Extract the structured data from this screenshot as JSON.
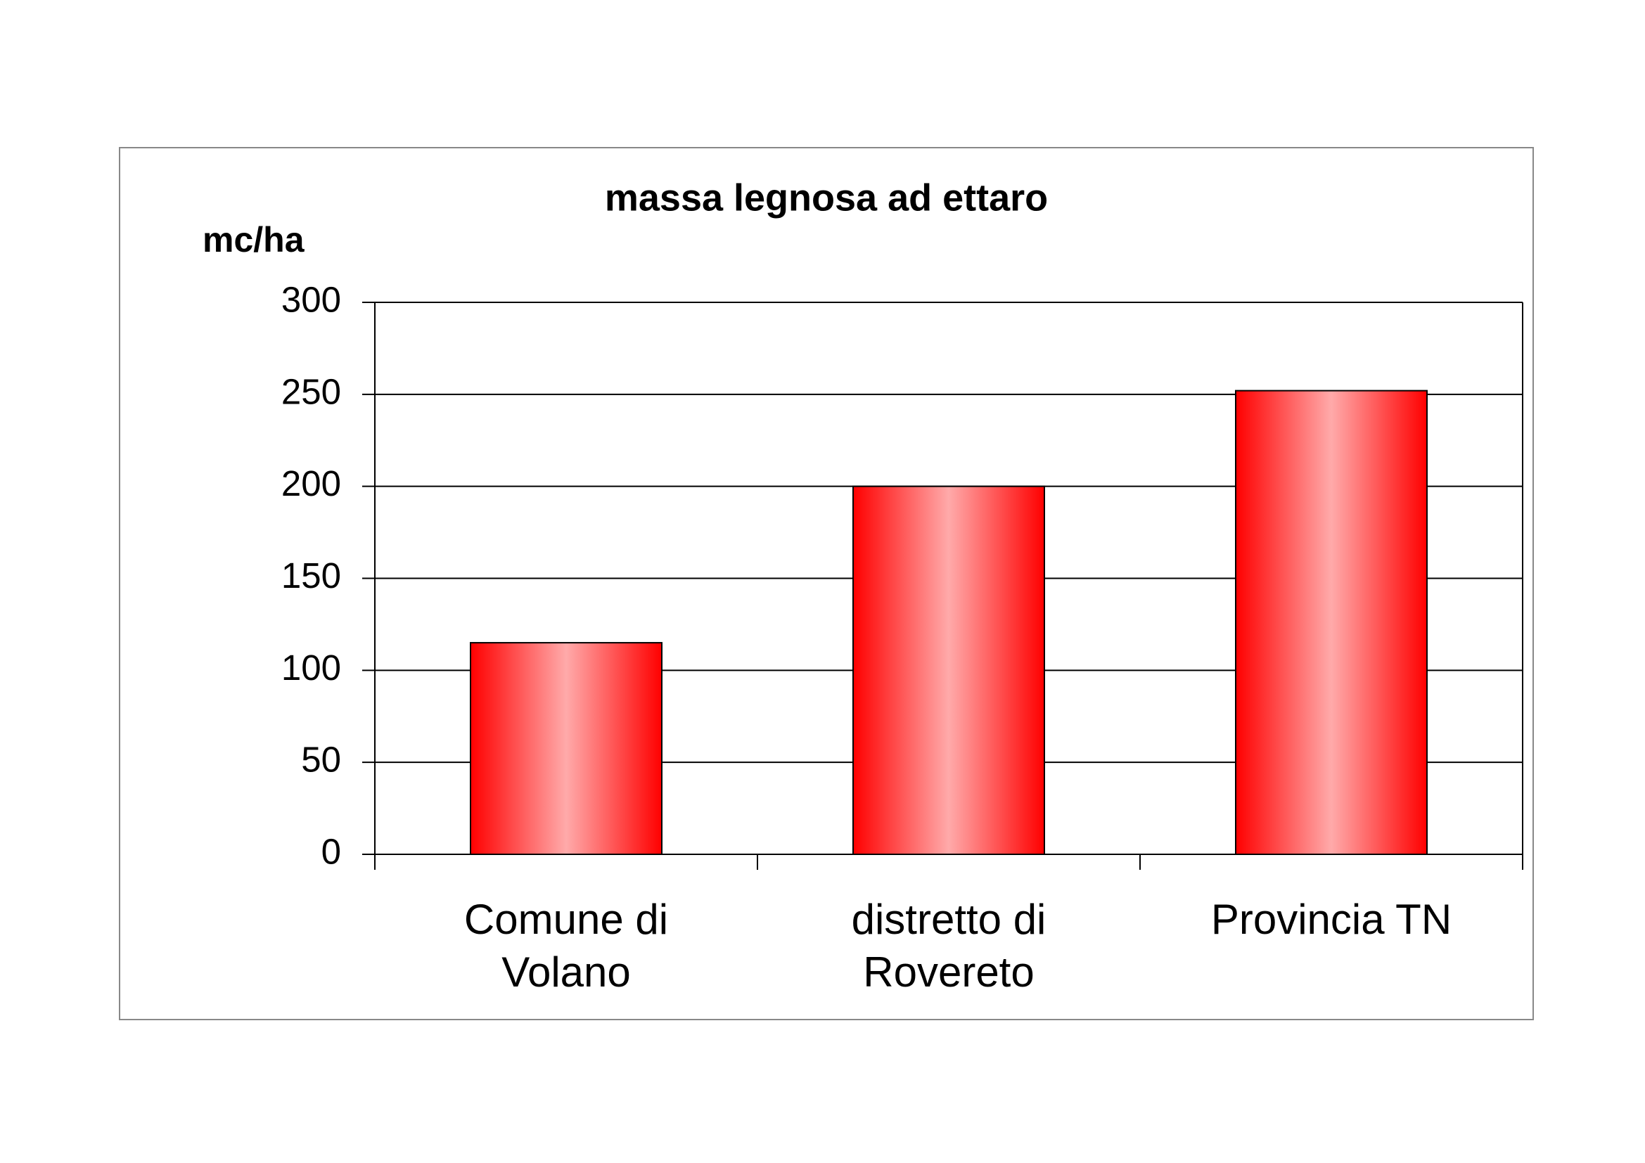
{
  "chart_data": {
    "type": "bar",
    "title": "massa legnosa ad ettaro",
    "y_label": "mc/ha",
    "categories": [
      "Comune di Volano",
      "distretto di Rovereto",
      "Provincia TN"
    ],
    "values": [
      115,
      200,
      252
    ],
    "color": "#ff0000",
    "ylim": [
      0,
      300
    ],
    "yticks": [
      0,
      50,
      100,
      150,
      200,
      250,
      300
    ],
    "grid": true
  }
}
